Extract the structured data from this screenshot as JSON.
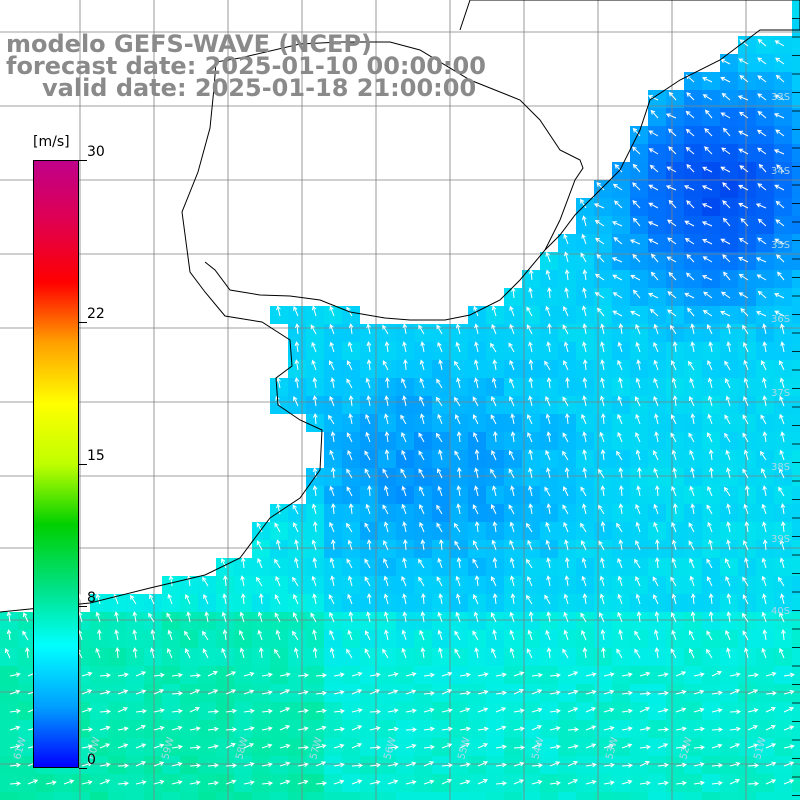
{
  "title": {
    "model": "modelo GEFS-WAVE (NCEP)",
    "forecast": "forecast date: 2025-01-10 00:00:00",
    "valid": "valid date: 2025-01-18 21:00:00"
  },
  "colorbar": {
    "unit": "[m/s]",
    "ticks": [
      {
        "label": "30",
        "value": 30
      },
      {
        "label": "22",
        "value": 22
      },
      {
        "label": "15",
        "value": 15
      },
      {
        "label": "8",
        "value": 8
      },
      {
        "label": "0",
        "value": 0
      }
    ],
    "colors": [
      "#0000ff",
      "#00a0ff",
      "#00ffff",
      "#00e080",
      "#00d000",
      "#c0ff00",
      "#ffff00",
      "#ffa000",
      "#ff0000",
      "#e00050",
      "#c0008a"
    ]
  },
  "map": {
    "lat_labels": [
      "33S",
      "34S",
      "35S",
      "36S",
      "37S",
      "38S",
      "39S",
      "40S"
    ],
    "lon_labels": [
      "61W",
      "60W",
      "59W",
      "58W",
      "57W",
      "56W",
      "55W",
      "54W",
      "53W",
      "52W",
      "51W"
    ],
    "colors": {
      "land": "#ffffff",
      "coast": "#000000",
      "grid": "#808080",
      "arrow": "#ffffff"
    }
  }
}
